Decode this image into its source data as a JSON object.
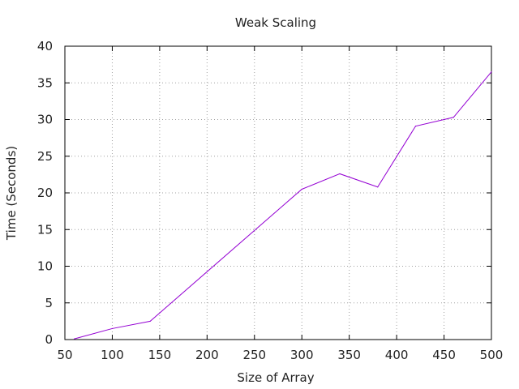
{
  "chart_data": {
    "type": "line",
    "title": "Weak Scaling",
    "xlabel": "Size of Array",
    "ylabel": "Time (Seconds)",
    "xlim": [
      50,
      500
    ],
    "ylim": [
      0,
      40
    ],
    "xticks": [
      "50",
      "100",
      "150",
      "200",
      "250",
      "300",
      "350",
      "400",
      "450",
      "500"
    ],
    "yticks": [
      "0",
      "5",
      "10",
      "15",
      "20",
      "25",
      "30",
      "35",
      "40"
    ],
    "grid": true,
    "legend": "none",
    "series": [
      {
        "color": "#9400d3",
        "x": [
          60,
          100,
          140,
          300,
          340,
          380,
          420,
          460,
          500
        ],
        "y": [
          0.1,
          1.5,
          2.5,
          20.5,
          22.6,
          20.8,
          29.1,
          30.3,
          36.5
        ]
      }
    ]
  }
}
